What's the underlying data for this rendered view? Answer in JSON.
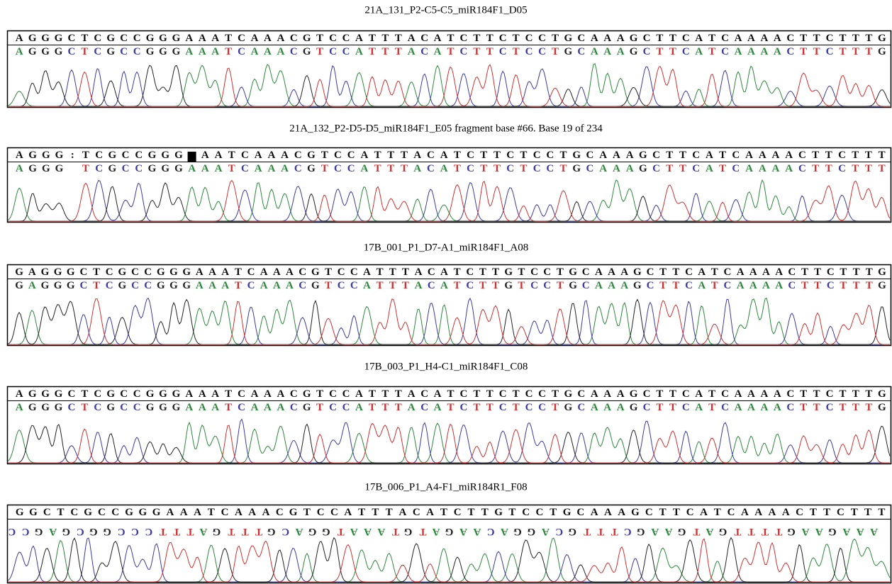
{
  "panels": [
    {
      "title": "21A_131_P2-C5-C5_miR184F1_D05",
      "consensus": "AGGGCTCGCCGGGAAATCAAACGTCCATTTACATCTTCTCCTGCAAAGCTTCATCAAAACTTCTTTG",
      "calls": "AGGGCTCGCCGGGAAATCAAACGTCCATTTACATCTTCTCCTGCAAAGCTTCATCAAAACTTCTTTG"
    },
    {
      "title": "21A_132_P2-D5-D5_miR184F1_E05 fragment base #66. Base 19 of 234",
      "consensus": "AGGG:TCGCCGGGAAATCAAACGTCCATTTACATCTTCTCCTGCAAAGCTTCATCAAAACTTCTTT",
      "calls": "AGGG TCGCCGGGAAATCAAACGTCCATTTACATCTTCTCCTGCAAAGCTTCATCAAAACTTCTTT"
    },
    {
      "title": "17B_001_P1_D7-A1_miR184F1_A08",
      "consensus": "GAGGGCTCGCCGGGAAATCAAACGTCCATTTACATCTTGTCCTGCAAAGCTTCATCAAAACTTCTTTG",
      "calls": "GAGGGCTCGCCGGGAAATCAAACGTCCATTTACATCTTGTCCTGCAAAGCTTCATCAAAACTTCTTTG"
    },
    {
      "title": "17B_003_P1_H4-C1_miR184F1_C08",
      "consensus": "AGGGCTCGCCGGGAAATCAAACGTCCATTTACATCTTCTCCTGCAAAGCTTCATCAAAACTTCTTTG",
      "calls": "AGGGCTCGCCGGGAAATCAAACGTCCATTTACATCTTCTCCTGCAAAGCTTCATCAAAACTTCTTTG"
    },
    {
      "title": "17B_006_P1_A4-F1_miR184R1_F08",
      "consensus": "GGCTCGCCGGGAAATCAAACGTCCATTTACATCTTGTCCTGCAAAGCTTCATCAAAACTTCTTT",
      "calls": "CCGAGCGGCCCTTTAGTTTGCAGGTAAATGTAGAACAGGACGTTTCGAAGTAGTTTTGAAGAAA"
    }
  ]
}
